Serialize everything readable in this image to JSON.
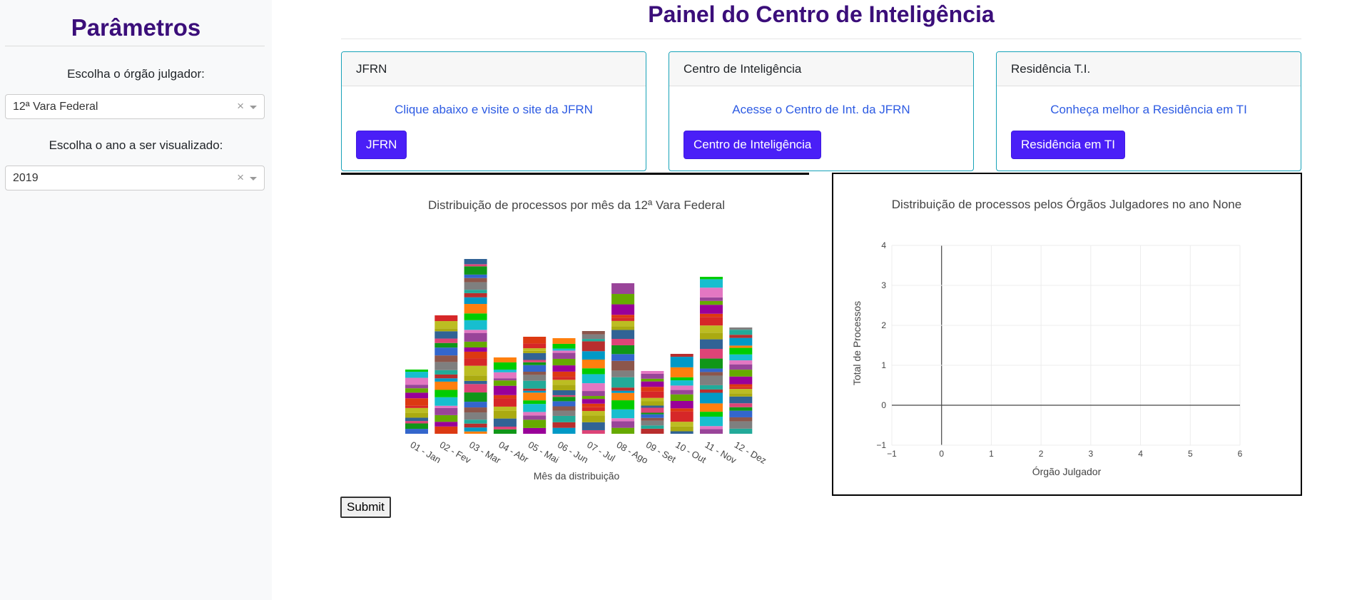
{
  "sidebar": {
    "title": "Parâmetros",
    "orgao_label": "Escolha o órgão julgador:",
    "orgao_value": "12ª Vara Federal",
    "ano_label": "Escolha o ano a ser visualizado:",
    "ano_value": "2019",
    "clear_symbol": "×"
  },
  "main": {
    "title": "Painel do Centro de Inteligência",
    "cards": [
      {
        "header": "JFRN",
        "text": "Clique abaixo e visite o site da JFRN",
        "button": "JFRN"
      },
      {
        "header": "Centro de Inteligência",
        "text": "Acesse o Centro de Int. da JFRN",
        "button": "Centro de Inteligência"
      },
      {
        "header": "Residência T.I.",
        "text": "Conheça melhor a Residência em TI",
        "button": "Residência em TI"
      }
    ],
    "submit": "Submit"
  },
  "colors": {
    "accent": "#4a1ff7",
    "title": "#3b0e7a",
    "card_border": "#17a2b8",
    "link": "#2d5be3",
    "palette": [
      "#3366cc",
      "#dc3912",
      "#ff7f0e",
      "#109618",
      "#990099",
      "#0099c6",
      "#dd4477",
      "#66aa00",
      "#b82e2e",
      "#316395",
      "#994499",
      "#22aa99",
      "#aaaa11",
      "#e377c2",
      "#7f7f7f",
      "#bcbd22",
      "#17becf",
      "#8c564b",
      "#d62728",
      "#00cc00"
    ]
  },
  "chart_data": [
    {
      "type": "bar",
      "stacked": true,
      "title": "Distribuição de processos por mês da 12ª Vara Federal",
      "xlabel": "Mês da distribuição",
      "ylabel": "",
      "categories": [
        "01 - Jan",
        "02 - Fev",
        "03 - Mar",
        "04 - Abr",
        "05 - Mai",
        "06 - Jun",
        "07 - Jul",
        "08 - Ago",
        "09 - Set",
        "10 - Out",
        "11 - Nov",
        "12 - Dez"
      ],
      "values": [
        90,
        166,
        245,
        107,
        136,
        134,
        144,
        211,
        88,
        112,
        220,
        149
      ],
      "segments": [
        14,
        20,
        30,
        14,
        20,
        20,
        18,
        22,
        16,
        14,
        24,
        22
      ]
    },
    {
      "type": "scatter",
      "title": "Distribuição de processos pelos Órgãos Julgadores no ano None",
      "xlabel": "Órgão Julgador",
      "ylabel": "Total de Processos",
      "xlim": [
        -1,
        6
      ],
      "ylim": [
        -1,
        4
      ],
      "xticks": [
        "−1",
        "0",
        "1",
        "2",
        "3",
        "4",
        "5",
        "6"
      ],
      "yticks": [
        "−1",
        "0",
        "1",
        "2",
        "3",
        "4"
      ],
      "series": [],
      "grid": true
    }
  ]
}
